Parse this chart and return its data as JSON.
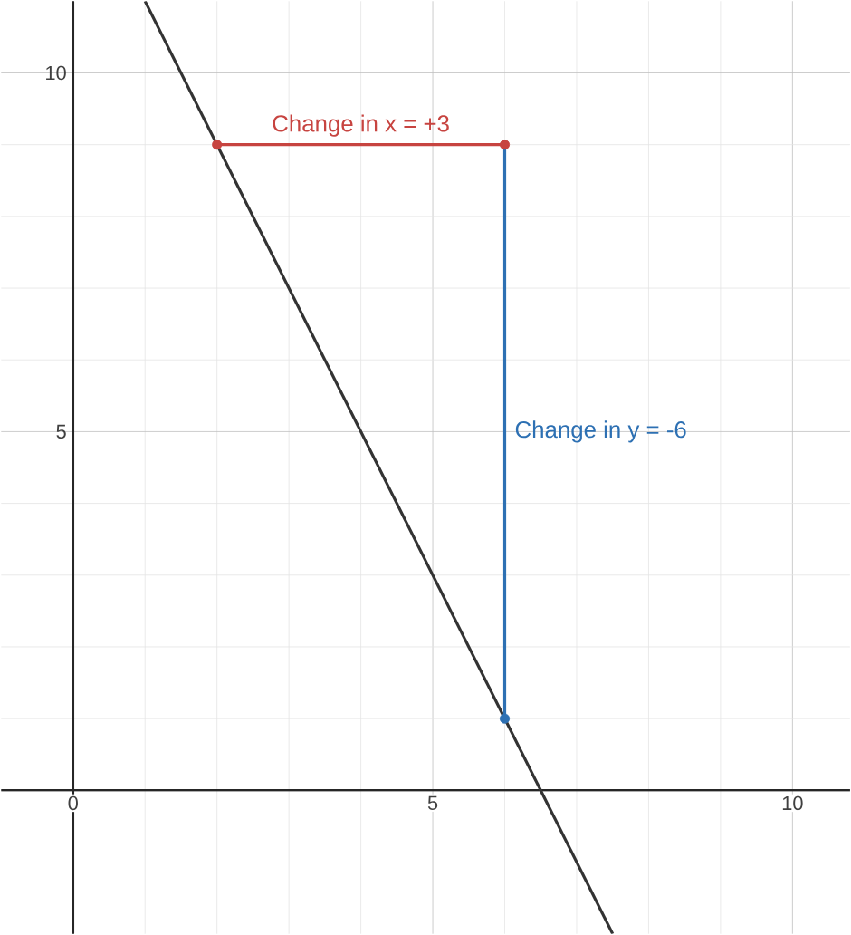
{
  "chart_data": {
    "type": "line",
    "xlim": [
      -1,
      10.8
    ],
    "ylim": [
      -2,
      11
    ],
    "xticks": [
      0,
      5,
      10
    ],
    "yticks": [
      {
        "value": 0,
        "label": null
      },
      5,
      10
    ],
    "grid": true,
    "series": [
      {
        "color": "#333333",
        "x": [
          1,
          7.5
        ],
        "values": [
          11,
          -2
        ]
      },
      {
        "name": "Change in x = +3",
        "color": "#c74440",
        "x": [
          2,
          6
        ],
        "values": [
          9,
          9
        ]
      },
      {
        "name": "Change in y = -6",
        "color": "#2d70b3",
        "x": [
          6,
          6
        ],
        "values": [
          9,
          1
        ]
      },
      {
        "type": "scatter",
        "color": "#c74440",
        "marker": "circle",
        "x": [
          2,
          6
        ],
        "values": [
          9,
          9
        ]
      },
      {
        "type": "scatter",
        "color": "#2d70b3",
        "marker": "circle",
        "x": [
          6
        ],
        "values": [
          1
        ]
      }
    ]
  }
}
